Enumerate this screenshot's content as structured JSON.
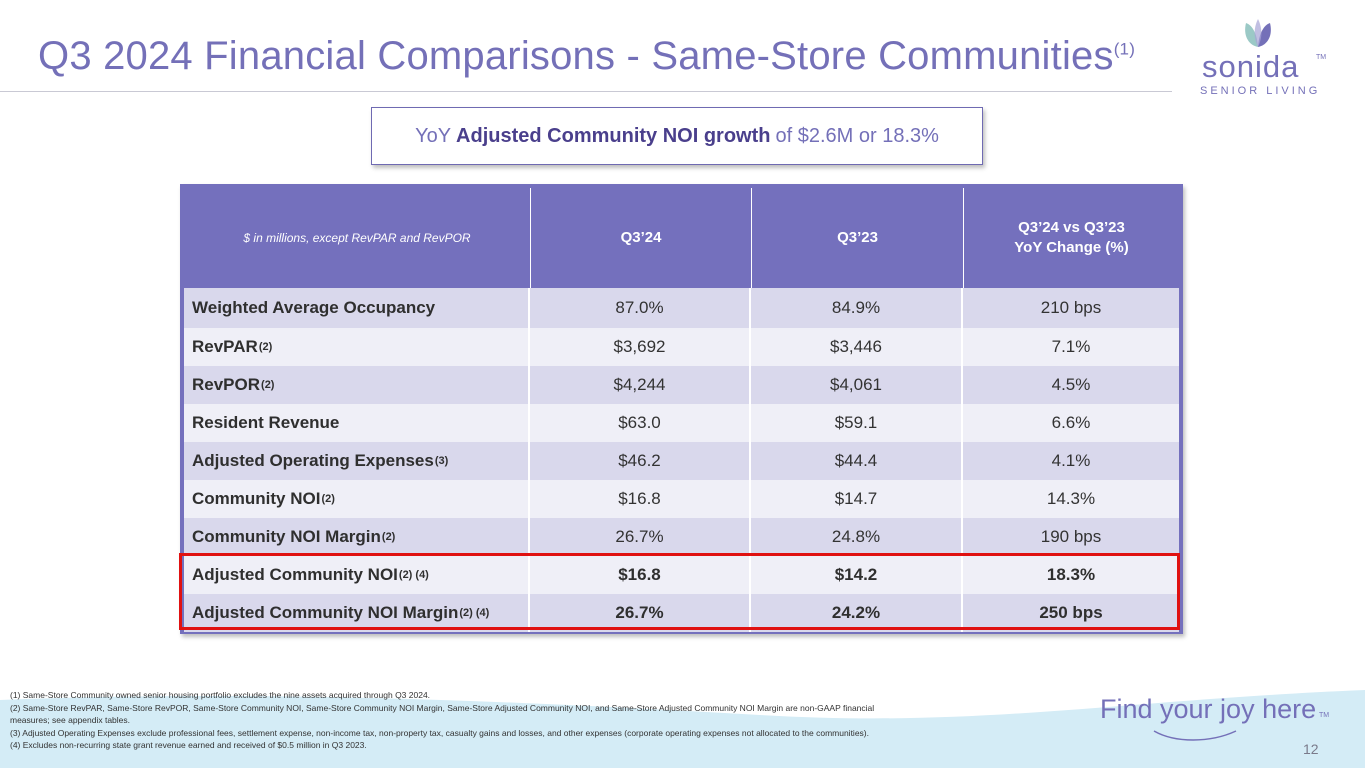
{
  "slide": {
    "title": "Q3 2024 Financial Comparisons - Same-Store Communities",
    "title_note": "(1)",
    "logo_word": "sonida",
    "logo_tm": "TM",
    "logo_sub": "SENIOR LIVING",
    "callout_pre": "YoY",
    "callout_bold": "Adjusted Community NOI growth",
    "callout_post": "of $2.6M or 18.3%",
    "tagline": "Find your joy here",
    "tagline_tm": "TM",
    "page_number": "12"
  },
  "table": {
    "headers": [
      "$ in millions, except RevPAR and RevPOR",
      "Q3’24",
      "Q3’23",
      "Q3’24 vs Q3’23",
      "YoY Change (%)"
    ],
    "rows": [
      {
        "label": "Weighted Average Occupancy",
        "note": "",
        "q324": "87.0%",
        "q323": "84.9%",
        "change": "210 bps"
      },
      {
        "label": "RevPAR",
        "note": "(2)",
        "q324": "$3,692",
        "q323": "$3,446",
        "change": "7.1%"
      },
      {
        "label": "RevPOR",
        "note": "(2)",
        "q324": "$4,244",
        "q323": "$4,061",
        "change": "4.5%"
      },
      {
        "label": "Resident Revenue",
        "note": "",
        "q324": "$63.0",
        "q323": "$59.1",
        "change": "6.6%"
      },
      {
        "label": "Adjusted Operating Expenses",
        "note": " (3)",
        "q324": "$46.2",
        "q323": "$44.4",
        "change": "4.1%"
      },
      {
        "label": "Community NOI",
        "note": "(2)",
        "q324": "$16.8",
        "q323": "$14.7",
        "change": "14.3%"
      },
      {
        "label": "Community NOI Margin",
        "note": "(2)",
        "q324": "26.7%",
        "q323": "24.8%",
        "change": "190 bps"
      },
      {
        "label": "Adjusted Community NOI",
        "note": "(2) (4)",
        "q324": "$16.8",
        "q323": "$14.2",
        "change": "18.3%"
      },
      {
        "label": "Adjusted Community NOI Margin",
        "note": "(2) (4)",
        "q324": "26.7%",
        "q323": "24.2%",
        "change": "250 bps"
      }
    ]
  },
  "footnotes": [
    "(1) Same-Store Community owned senior housing portfolio excludes the nine assets acquired through Q3 2024.",
    "(2) Same-Store RevPAR, Same-Store RevPOR, Same-Store Community NOI, Same-Store Community NOI Margin, Same-Store Adjusted Community NOI, and Same-Store Adjusted Community NOI Margin are non-GAAP financial measures; see appendix tables.",
    "(3) Adjusted Operating Expenses exclude professional fees, settlement expense, non-income tax, non-property tax, casualty gains and losses, and other expenses (corporate operating expenses not allocated to the communities).",
    "(4) Excludes non-recurring state grant revenue earned and received of $0.5 million in Q3 2023."
  ],
  "colors": {
    "brand": "#7470b8",
    "table_header": "#7470bd",
    "highlight": "#e01111",
    "wave": "#cfe9f4"
  }
}
